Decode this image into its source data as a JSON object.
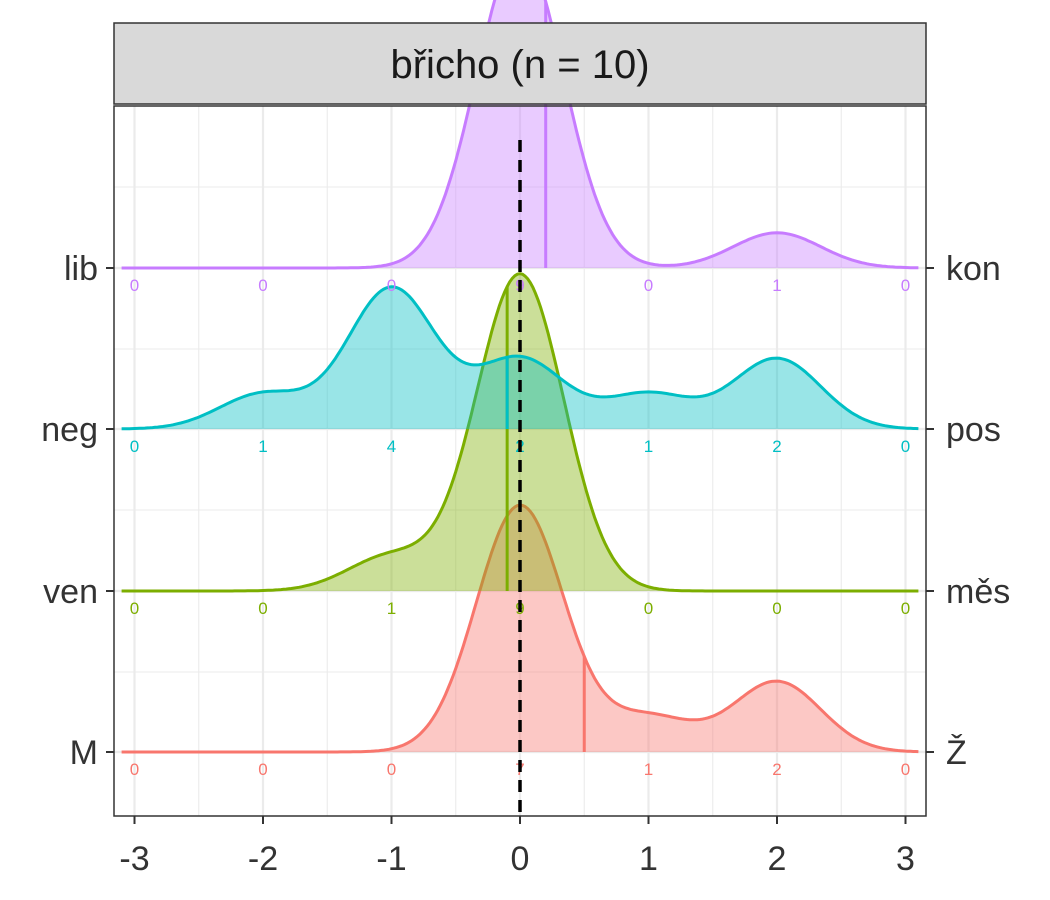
{
  "chart_data": {
    "type": "ridgeline",
    "title": "břicho (n = 10)",
    "xlim": [
      -3,
      3
    ],
    "x_ticks": [
      "-3",
      "-2",
      "-1",
      "0",
      "1",
      "2",
      "3"
    ],
    "reference_line_x": 0,
    "grid": true,
    "categories": [
      -3,
      -2,
      -1,
      0,
      1,
      2,
      3
    ],
    "series": [
      {
        "left_label": "M",
        "right_label": "Ž",
        "color": "#F8766D",
        "counts": [
          0,
          0,
          0,
          7,
          1,
          2,
          0
        ],
        "mean": 0.5
      },
      {
        "left_label": "ven",
        "right_label": "měs",
        "color": "#7CAE00",
        "counts": [
          0,
          0,
          1,
          9,
          0,
          0,
          0
        ],
        "mean": -0.1
      },
      {
        "left_label": "neg",
        "right_label": "pos",
        "color": "#00BFC4",
        "counts": [
          0,
          1,
          4,
          2,
          1,
          2,
          0
        ],
        "mean": -0.1
      },
      {
        "left_label": "lib",
        "right_label": "kon",
        "color": "#C77CFF",
        "counts": [
          0,
          0,
          0,
          9,
          0,
          1,
          0
        ],
        "mean": 0.2
      }
    ]
  }
}
